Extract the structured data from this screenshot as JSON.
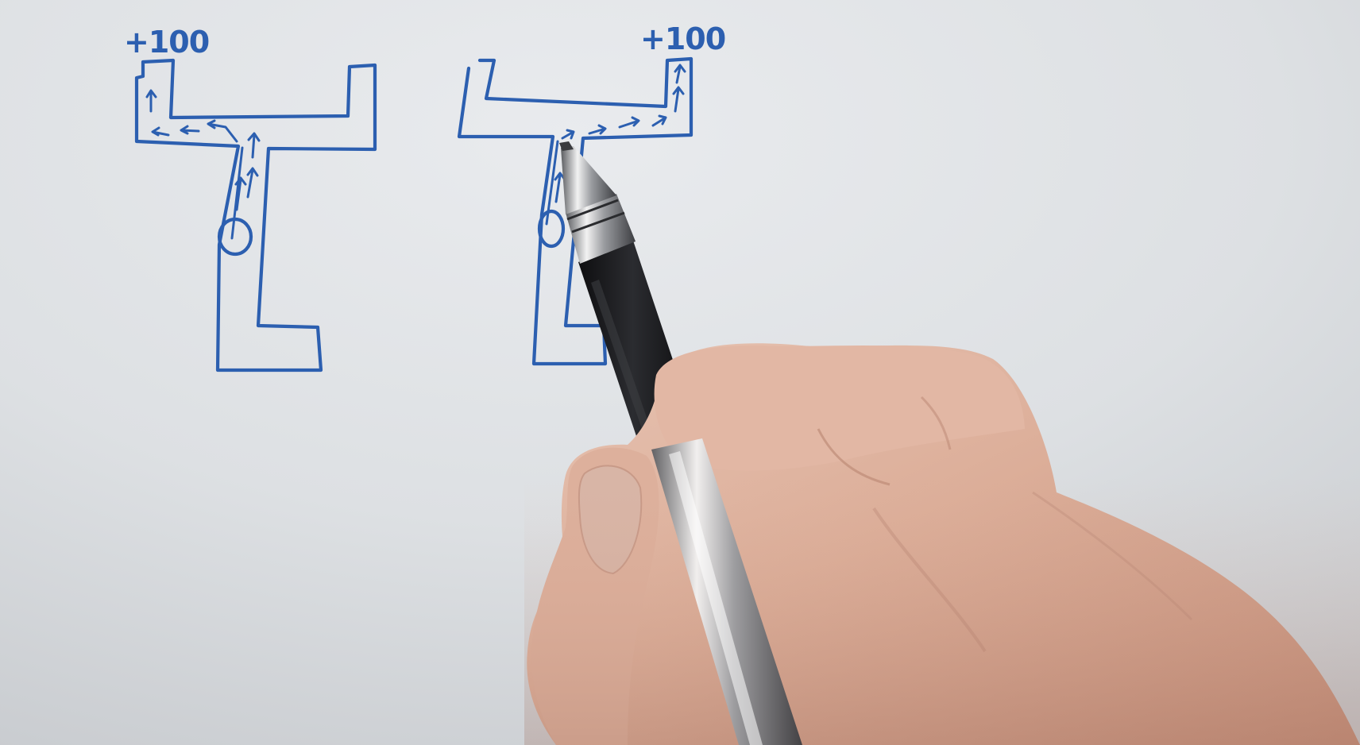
{
  "annotations": {
    "left_label": "+100",
    "right_label": "+100"
  },
  "colors": {
    "ink": "#2c5fb0",
    "paper": "#dfe2e5",
    "skin": "#e2b9a6",
    "pen_barrel": "#1b1b1d"
  }
}
